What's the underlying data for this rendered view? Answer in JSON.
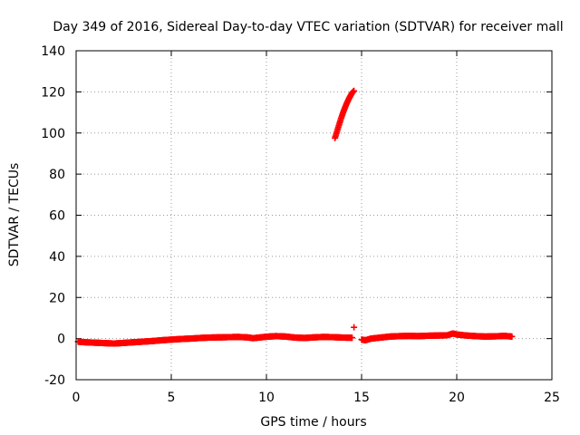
{
  "chart_data": {
    "type": "scatter",
    "title": "Day 349 of 2016, Sidereal Day-to-day VTEC variation (SDTVAR) for receiver mall",
    "xlabel": "GPS time / hours",
    "ylabel": "SDTVAR / TECUs",
    "xlim": [
      0,
      25
    ],
    "ylim": [
      -20,
      140
    ],
    "xticks": [
      0,
      5,
      10,
      15,
      20,
      25
    ],
    "yticks": [
      -20,
      0,
      20,
      40,
      60,
      80,
      100,
      120,
      140
    ],
    "grid": true,
    "legend": "none",
    "marker": "+",
    "color": "#ff0000",
    "series": [
      {
        "segments": [
          {
            "x": [
              0.1,
              0.5,
              1.0,
              1.5,
              2.0,
              2.5,
              3.0,
              3.5,
              4.0,
              4.5,
              5.0,
              5.5,
              6.0,
              6.5,
              7.0,
              7.5,
              8.0,
              8.5,
              9.0,
              9.3,
              9.6,
              10.0,
              10.5,
              11.0,
              11.5,
              12.0,
              12.5,
              13.0,
              13.5,
              14.0,
              14.5
            ],
            "y": [
              -1.5,
              -1.8,
              -2.0,
              -2.2,
              -2.4,
              -2.1,
              -1.8,
              -1.5,
              -1.2,
              -0.8,
              -0.5,
              -0.2,
              0.0,
              0.3,
              0.5,
              0.6,
              0.7,
              0.8,
              0.6,
              0.2,
              0.5,
              0.9,
              1.2,
              1.0,
              0.5,
              0.3,
              0.6,
              0.8,
              0.7,
              0.5,
              0.4
            ]
          },
          {
            "x": [
              13.6,
              13.75,
              13.9,
              14.05,
              14.2,
              14.35,
              14.5,
              14.6
            ],
            "y": [
              97.5,
              102,
              106.5,
              110.5,
              114,
              117,
              119.5,
              120.5
            ]
          },
          {
            "x": [
              14.6
            ],
            "y": [
              5.5
            ]
          },
          {
            "x": [
              15.0,
              15.2,
              15.5,
              16.0,
              16.5,
              17.0,
              17.5,
              18.0,
              18.5,
              19.0,
              19.5,
              19.8,
              20.0,
              20.5,
              21.0,
              21.5,
              22.0,
              22.5,
              22.9
            ],
            "y": [
              -0.5,
              -0.8,
              0.0,
              0.5,
              1.0,
              1.2,
              1.3,
              1.2,
              1.4,
              1.5,
              1.6,
              2.5,
              2.0,
              1.5,
              1.2,
              1.0,
              1.1,
              1.3,
              1.0
            ]
          }
        ]
      }
    ]
  }
}
